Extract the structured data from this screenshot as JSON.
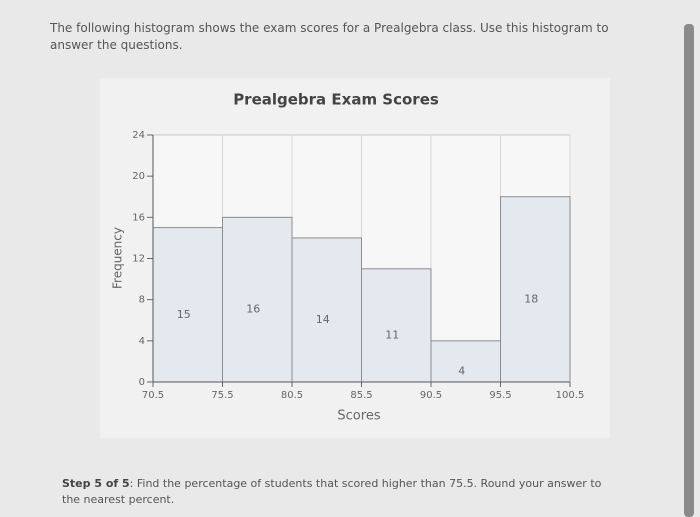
{
  "intro": "The following histogram shows the exam scores for a Prealgebra class. Use this histogram to answer the questions.",
  "chart_data": {
    "type": "histogram",
    "title": "Prealgebra Exam Scores",
    "x_label": "Scores",
    "y_label": "Frequency",
    "bins": [
      70.5,
      75.5,
      80.5,
      85.5,
      90.5,
      95.5,
      100.5
    ],
    "values": [
      15,
      16,
      14,
      11,
      4,
      18
    ],
    "color": "#e4e9ef",
    "xlim": [
      70.5,
      100.5
    ],
    "xticks": [
      70.5,
      75.5,
      80.5,
      85.5,
      90.5,
      95.5,
      100.5
    ],
    "ylim": [
      0,
      24
    ],
    "yticks": [
      0,
      4,
      8,
      12,
      16,
      20,
      24
    ],
    "grid": true
  },
  "step": {
    "label": "Step 5 of 5",
    "text": ": Find the percentage of students that scored higher than 75.5. Round your answer to the nearest percent."
  }
}
